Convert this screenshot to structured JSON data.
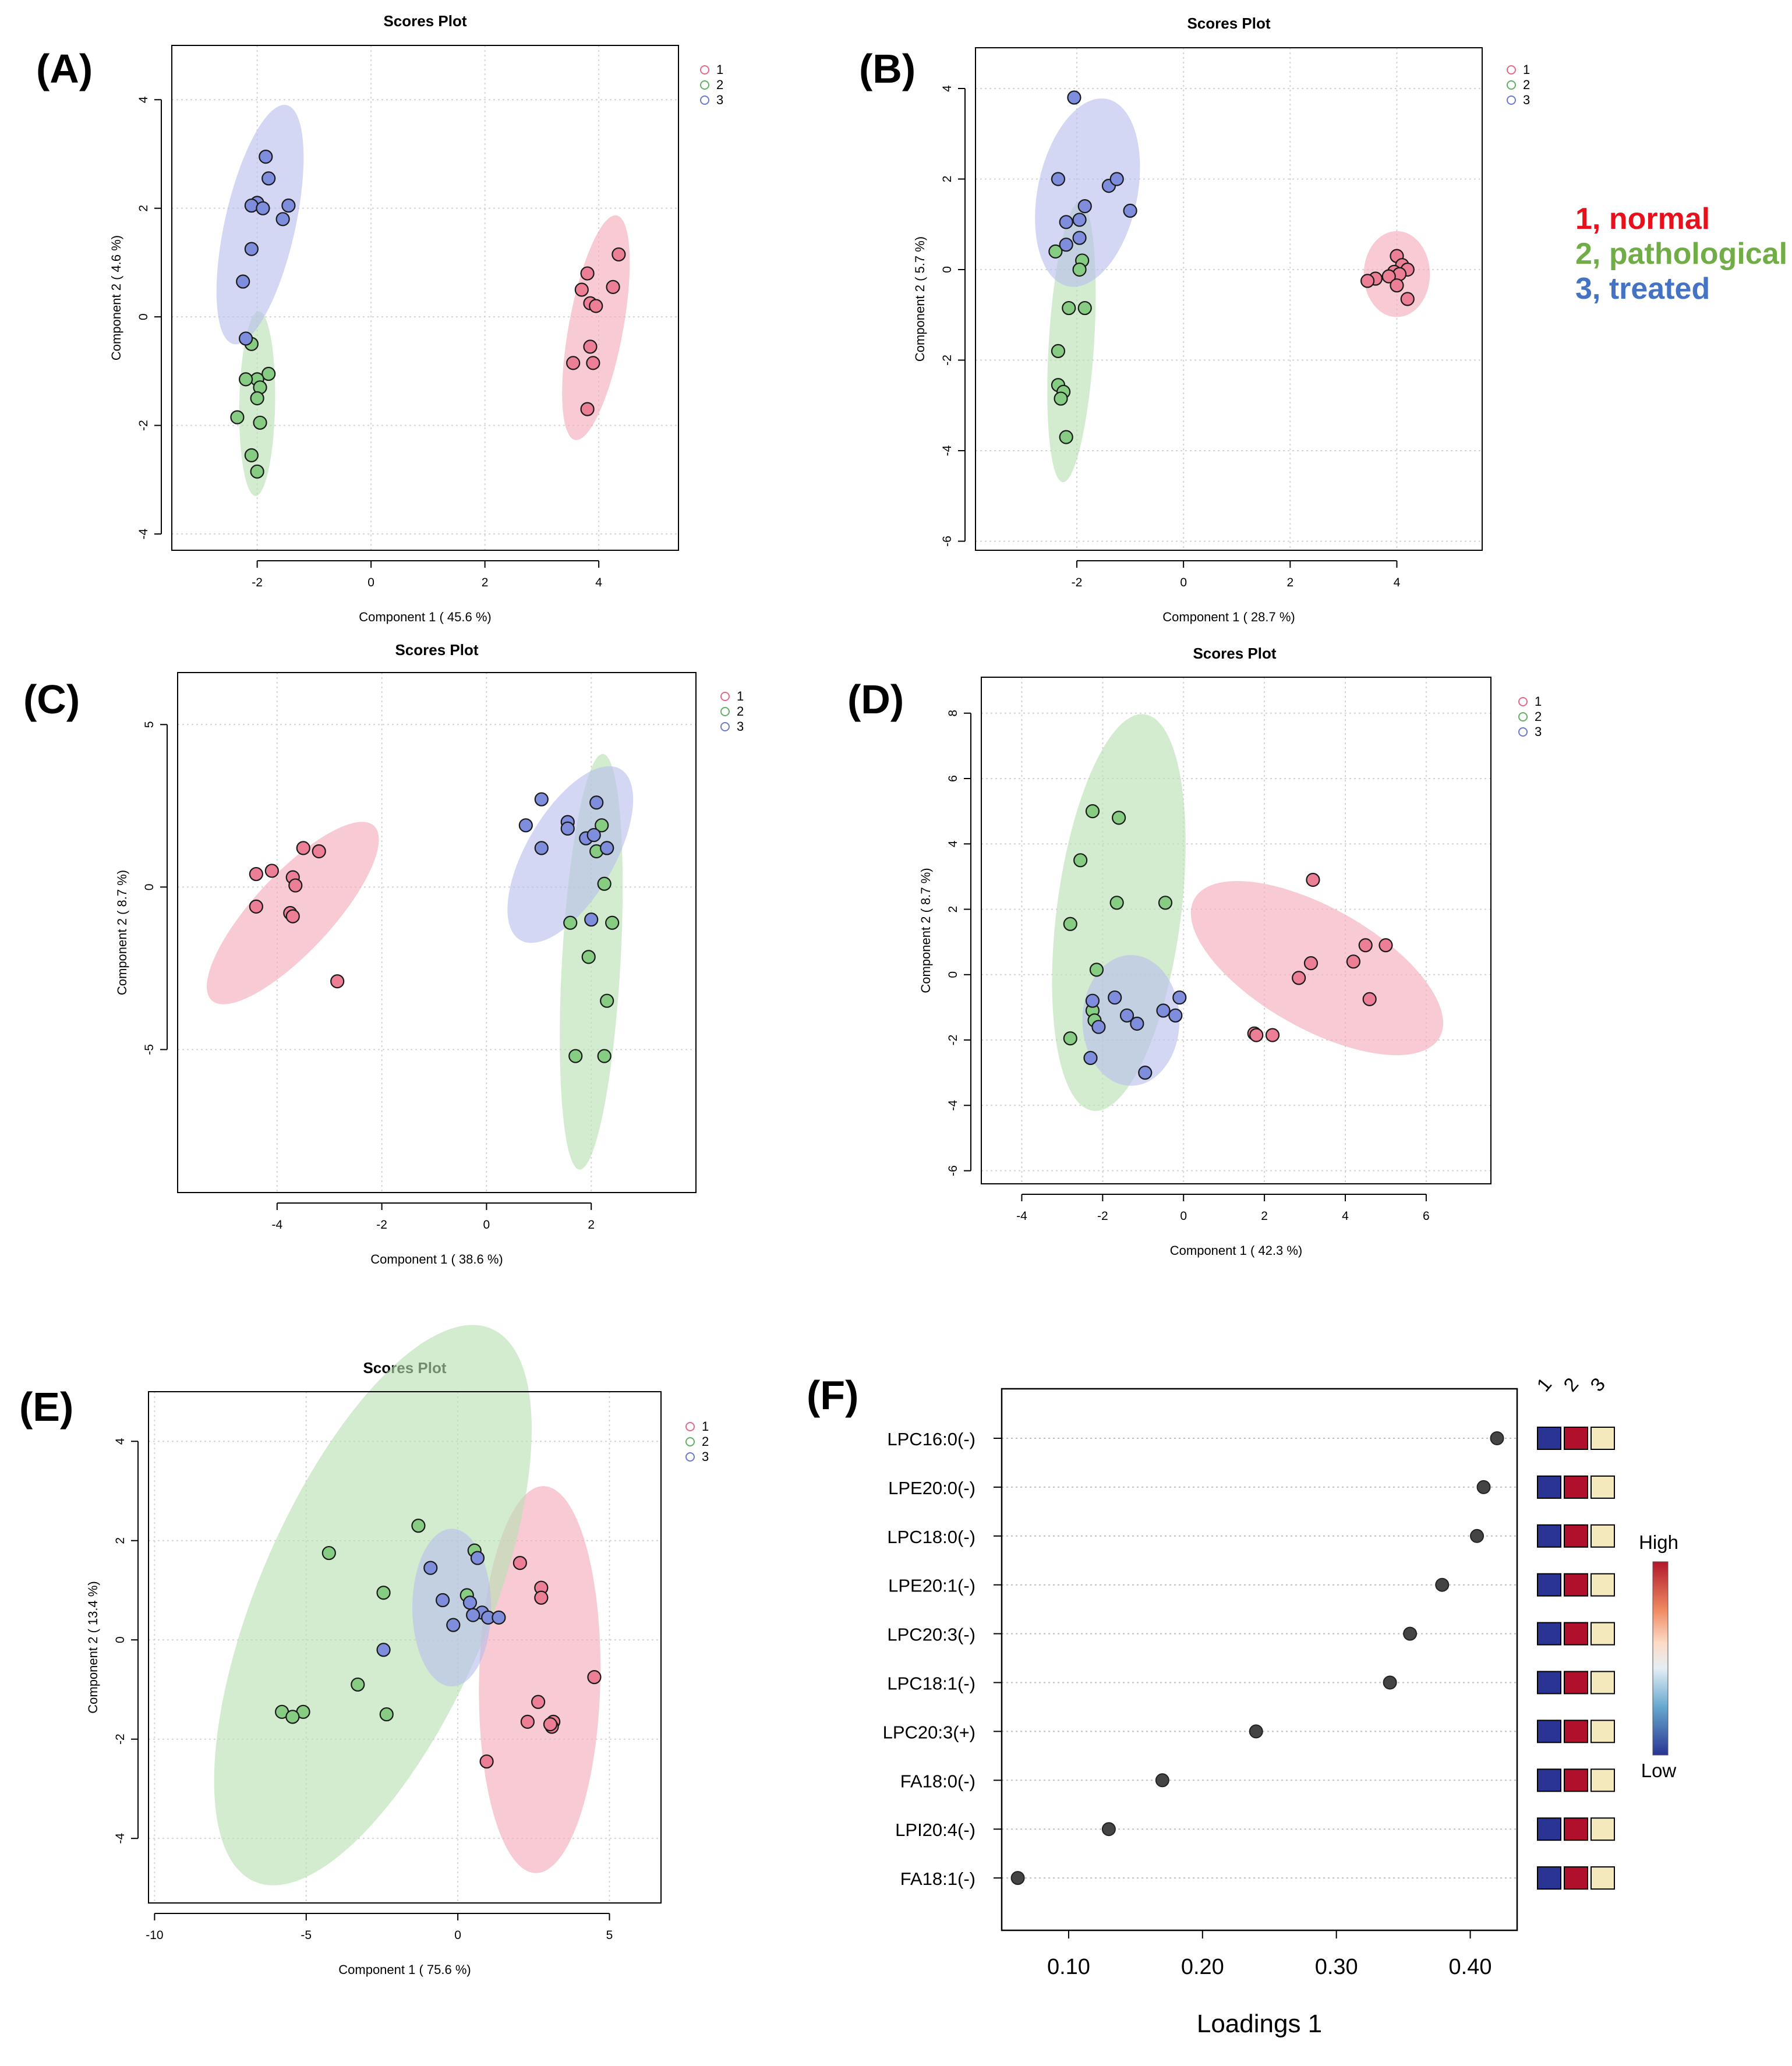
{
  "figure_key": [
    {
      "text": "1, normal",
      "color": "#e8101a"
    },
    {
      "text": "2, pathological",
      "color": "#71ad47"
    },
    {
      "text": "3, treated",
      "color": "#4472c4"
    }
  ],
  "group_colors": {
    "1": {
      "fill": "#ec7f95",
      "ellipse": "#f4a9b8",
      "legend": "#e26a86"
    },
    "2": {
      "fill": "#86cc82",
      "ellipse": "#b8e0b3",
      "legend": "#5fb05f"
    },
    "3": {
      "fill": "#7e8edc",
      "ellipse": "#b8bfeb",
      "legend": "#6a78d0"
    }
  },
  "chart_data": [
    {
      "panel": "(A)",
      "type": "scatter",
      "title": "Scores Plot",
      "xlabel": "Component 1 ( 45.6 %)",
      "ylabel": "Component 2 ( 4.6 %)",
      "xlim": [
        -3.5,
        5.4
      ],
      "ylim": [
        -4.3,
        5.0
      ],
      "xticks": [
        -2,
        0,
        2,
        4
      ],
      "yticks": [
        -4,
        -2,
        0,
        2,
        4
      ],
      "legend": [
        "1",
        "2",
        "3"
      ],
      "ellipses": [
        {
          "group": "1",
          "cx": 3.95,
          "cy": -0.2,
          "rx": 0.5,
          "ry": 2.1,
          "angle": 80
        },
        {
          "group": "2",
          "cx": -2.0,
          "cy": -1.6,
          "rx": 0.33,
          "ry": 1.7,
          "angle": 89
        },
        {
          "group": "3",
          "cx": -1.95,
          "cy": 1.7,
          "rx": 0.65,
          "ry": 2.25,
          "angle": 78
        }
      ],
      "series": [
        {
          "name": "1",
          "points": [
            [
              4.35,
              1.15
            ],
            [
              4.25,
              0.55
            ],
            [
              3.8,
              0.8
            ],
            [
              3.7,
              0.5
            ],
            [
              3.85,
              0.25
            ],
            [
              3.95,
              0.2
            ],
            [
              3.85,
              -0.55
            ],
            [
              3.55,
              -0.85
            ],
            [
              3.9,
              -0.85
            ],
            [
              3.8,
              -1.7
            ]
          ]
        },
        {
          "name": "2",
          "points": [
            [
              -2.1,
              -0.5
            ],
            [
              -1.8,
              -1.05
            ],
            [
              -2.0,
              -1.15
            ],
            [
              -2.2,
              -1.15
            ],
            [
              -1.95,
              -1.3
            ],
            [
              -2.0,
              -1.5
            ],
            [
              -2.35,
              -1.85
            ],
            [
              -1.95,
              -1.95
            ],
            [
              -2.1,
              -2.55
            ],
            [
              -2.0,
              -2.85
            ]
          ]
        },
        {
          "name": "3",
          "points": [
            [
              -1.85,
              2.95
            ],
            [
              -1.8,
              2.55
            ],
            [
              -2.0,
              2.1
            ],
            [
              -2.1,
              2.05
            ],
            [
              -1.9,
              2.0
            ],
            [
              -1.45,
              2.05
            ],
            [
              -1.55,
              1.8
            ],
            [
              -2.1,
              1.25
            ],
            [
              -2.25,
              0.65
            ],
            [
              -2.2,
              -0.4
            ]
          ]
        }
      ]
    },
    {
      "panel": "(B)",
      "type": "scatter",
      "title": "Scores Plot",
      "xlabel": "Component 1 ( 28.7 %)",
      "ylabel": "Component 2 ( 5.7 %)",
      "xlim": [
        -3.9,
        5.6
      ],
      "ylim": [
        -6.2,
        4.9
      ],
      "xticks": [
        -2,
        0,
        2,
        4
      ],
      "yticks": [
        -6,
        -4,
        -2,
        0,
        2,
        4
      ],
      "legend": [
        "1",
        "2",
        "3"
      ],
      "ellipses": [
        {
          "group": "1",
          "cx": 4.0,
          "cy": -0.1,
          "rx": 0.95,
          "ry": 0.62,
          "angle": 0
        },
        {
          "group": "2",
          "cx": -2.1,
          "cy": -1.6,
          "rx": 0.5,
          "ry": 3.1,
          "angle": 87
        },
        {
          "group": "3",
          "cx": -1.8,
          "cy": 1.7,
          "rx": 1.1,
          "ry": 2.1,
          "angle": 80
        }
      ],
      "series": [
        {
          "name": "1",
          "points": [
            [
              4.0,
              0.3
            ],
            [
              4.1,
              0.1
            ],
            [
              4.2,
              0.0
            ],
            [
              3.95,
              -0.05
            ],
            [
              4.05,
              -0.1
            ],
            [
              3.85,
              -0.15
            ],
            [
              3.6,
              -0.2
            ],
            [
              3.45,
              -0.25
            ],
            [
              4.0,
              -0.35
            ],
            [
              4.2,
              -0.65
            ]
          ]
        },
        {
          "name": "2",
          "points": [
            [
              -1.9,
              0.2
            ],
            [
              -1.95,
              0.0
            ],
            [
              -2.15,
              -0.85
            ],
            [
              -1.85,
              -0.85
            ],
            [
              -2.35,
              -1.8
            ],
            [
              -2.35,
              -2.55
            ],
            [
              -2.25,
              -2.7
            ],
            [
              -2.3,
              -2.85
            ],
            [
              -2.2,
              -3.7
            ],
            [
              -2.4,
              0.4
            ]
          ]
        },
        {
          "name": "3",
          "points": [
            [
              -2.05,
              3.8
            ],
            [
              -2.35,
              2.0
            ],
            [
              -1.4,
              1.85
            ],
            [
              -1.25,
              2.0
            ],
            [
              -1.0,
              1.3
            ],
            [
              -1.85,
              1.4
            ],
            [
              -1.95,
              1.1
            ],
            [
              -2.2,
              1.05
            ],
            [
              -1.95,
              0.7
            ],
            [
              -2.2,
              0.55
            ]
          ]
        }
      ]
    },
    {
      "panel": "(C)",
      "type": "scatter",
      "title": "Scores Plot",
      "xlabel": "Component 1 ( 38.6 %)",
      "ylabel": "Component 2 ( 8.7 %)",
      "xlim": [
        -5.9,
        4.0
      ],
      "ylim": [
        -9.4,
        6.6
      ],
      "xticks": [
        -4,
        -2,
        0,
        2
      ],
      "yticks": [
        -5,
        0,
        5
      ],
      "legend": [
        "1",
        "2",
        "3"
      ],
      "ellipses": [
        {
          "group": "1",
          "cx": -3.7,
          "cy": -0.8,
          "rx": 1.2,
          "ry": 3.1,
          "angle": 60
        },
        {
          "group": "2",
          "cx": 2.0,
          "cy": -2.3,
          "rx": 0.9,
          "ry": 6.4,
          "angle": 88
        },
        {
          "group": "3",
          "cx": 1.6,
          "cy": 1.0,
          "rx": 1.35,
          "ry": 2.8,
          "angle": 70
        }
      ],
      "series": [
        {
          "name": "1",
          "points": [
            [
              -3.5,
              1.2
            ],
            [
              -3.2,
              1.1
            ],
            [
              -4.1,
              0.5
            ],
            [
              -4.4,
              0.4
            ],
            [
              -3.7,
              0.3
            ],
            [
              -3.65,
              0.05
            ],
            [
              -4.4,
              -0.6
            ],
            [
              -3.75,
              -0.8
            ],
            [
              -3.7,
              -0.9
            ],
            [
              -2.85,
              -2.9
            ]
          ]
        },
        {
          "name": "2",
          "points": [
            [
              2.2,
              1.9
            ],
            [
              2.3,
              1.2
            ],
            [
              2.25,
              0.1
            ],
            [
              1.6,
              -1.1
            ],
            [
              2.4,
              -1.1
            ],
            [
              1.95,
              -2.15
            ],
            [
              2.3,
              -3.5
            ],
            [
              1.7,
              -5.2
            ],
            [
              2.25,
              -5.2
            ],
            [
              2.1,
              1.1
            ]
          ]
        },
        {
          "name": "3",
          "points": [
            [
              1.05,
              2.7
            ],
            [
              2.1,
              2.6
            ],
            [
              0.75,
              1.9
            ],
            [
              1.55,
              2.0
            ],
            [
              1.55,
              1.8
            ],
            [
              1.9,
              1.5
            ],
            [
              2.05,
              1.6
            ],
            [
              2.3,
              1.2
            ],
            [
              1.05,
              1.2
            ],
            [
              2.0,
              -1.0
            ]
          ]
        }
      ]
    },
    {
      "panel": "(D)",
      "type": "scatter",
      "title": "Scores Plot",
      "xlabel": "Component 1 ( 42.3 %)",
      "ylabel": "Component 2 ( 8.7 %)",
      "xlim": [
        -5.0,
        7.6
      ],
      "ylim": [
        -6.4,
        9.1
      ],
      "xticks": [
        -4,
        -2,
        0,
        2,
        4,
        6
      ],
      "yticks": [
        -6,
        -4,
        -2,
        0,
        2,
        4,
        6,
        8
      ],
      "legend": [
        "1",
        "2",
        "3"
      ],
      "ellipses": [
        {
          "group": "1",
          "cx": 3.3,
          "cy": 0.2,
          "rx": 1.85,
          "ry": 3.7,
          "angle": -35
        },
        {
          "group": "2",
          "cx": -1.6,
          "cy": 1.9,
          "rx": 1.9,
          "ry": 6.1,
          "angle": 84
        },
        {
          "group": "3",
          "cx": -1.3,
          "cy": -1.4,
          "rx": 2.0,
          "ry": 1.2,
          "angle": 0
        }
      ],
      "series": [
        {
          "name": "1",
          "points": [
            [
              3.2,
              2.9
            ],
            [
              4.5,
              0.9
            ],
            [
              5.0,
              0.9
            ],
            [
              4.2,
              0.4
            ],
            [
              3.15,
              0.35
            ],
            [
              2.85,
              -0.1
            ],
            [
              4.6,
              -0.75
            ],
            [
              1.75,
              -1.8
            ],
            [
              1.8,
              -1.85
            ],
            [
              2.2,
              -1.85
            ]
          ]
        },
        {
          "name": "2",
          "points": [
            [
              -2.25,
              5.0
            ],
            [
              -1.6,
              4.8
            ],
            [
              -2.55,
              3.5
            ],
            [
              -1.65,
              2.2
            ],
            [
              -0.45,
              2.2
            ],
            [
              -2.8,
              1.55
            ],
            [
              -2.15,
              0.15
            ],
            [
              -2.25,
              -1.1
            ],
            [
              -2.2,
              -1.4
            ],
            [
              -2.8,
              -1.95
            ]
          ]
        },
        {
          "name": "3",
          "points": [
            [
              -2.25,
              -0.8
            ],
            [
              -1.7,
              -0.7
            ],
            [
              -0.1,
              -0.7
            ],
            [
              -0.5,
              -1.1
            ],
            [
              -1.4,
              -1.25
            ],
            [
              -0.2,
              -1.25
            ],
            [
              -1.15,
              -1.5
            ],
            [
              -2.1,
              -1.6
            ],
            [
              -2.3,
              -2.55
            ],
            [
              -0.95,
              -3.0
            ]
          ]
        }
      ]
    },
    {
      "panel": "(E)",
      "type": "scatter",
      "title": "Scores Plot",
      "xlabel": "Component 1 ( 75.6 %)",
      "ylabel": "Component 2 ( 13.4 %)",
      "xlim": [
        -10.2,
        6.7
      ],
      "ylim": [
        -5.3,
        5.0
      ],
      "xticks": [
        -10,
        -5,
        0,
        5
      ],
      "yticks": [
        -4,
        -2,
        0,
        2,
        4
      ],
      "legend": [
        "1",
        "2",
        "3"
      ],
      "ellipses": [
        {
          "group": "1",
          "cx": 2.7,
          "cy": -0.8,
          "rx": 2.0,
          "ry": 3.9,
          "angle": 88
        },
        {
          "group": "2",
          "cx": -2.8,
          "cy": 0.7,
          "rx": 3.8,
          "ry": 6.8,
          "angle": 55
        },
        {
          "group": "3",
          "cx": -0.2,
          "cy": 0.65,
          "rx": 2.6,
          "ry": 1.3,
          "angle": 0
        }
      ],
      "series": [
        {
          "name": "1",
          "points": [
            [
              2.05,
              1.55
            ],
            [
              2.75,
              1.05
            ],
            [
              2.75,
              0.85
            ],
            [
              4.5,
              -0.75
            ],
            [
              2.65,
              -1.25
            ],
            [
              2.3,
              -1.65
            ],
            [
              3.15,
              -1.65
            ],
            [
              3.1,
              -1.75
            ],
            [
              0.95,
              -2.45
            ],
            [
              3.05,
              -1.7
            ]
          ]
        },
        {
          "name": "2",
          "points": [
            [
              -1.3,
              2.3
            ],
            [
              -4.25,
              1.75
            ],
            [
              0.55,
              1.8
            ],
            [
              -2.45,
              0.95
            ],
            [
              0.3,
              0.9
            ],
            [
              -3.3,
              -0.9
            ],
            [
              -5.8,
              -1.45
            ],
            [
              -5.1,
              -1.45
            ],
            [
              -5.45,
              -1.55
            ],
            [
              -2.35,
              -1.5
            ]
          ]
        },
        {
          "name": "3",
          "points": [
            [
              0.65,
              1.65
            ],
            [
              -0.9,
              1.45
            ],
            [
              -0.5,
              0.8
            ],
            [
              0.4,
              0.75
            ],
            [
              0.8,
              0.55
            ],
            [
              1.0,
              0.45
            ],
            [
              0.5,
              0.5
            ],
            [
              1.35,
              0.45
            ],
            [
              -0.15,
              0.3
            ],
            [
              -2.45,
              -0.2
            ]
          ]
        }
      ]
    },
    {
      "panel": "(F)",
      "type": "scatter",
      "xlabel": "Loadings 1",
      "xlim": [
        0.05,
        0.435
      ],
      "xticks": [
        "0.10",
        "0.20",
        "0.30",
        "0.40"
      ],
      "categories": [
        "LPC16:0(-)",
        "LPE20:0(-)",
        "LPC18:0(-)",
        "LPE20:1(-)",
        "LPC20:3(-)",
        "LPC18:1(-)",
        "LPC20:3(+)",
        "FA18:0(-)",
        "LPI20:4(-)",
        "FA18:1(-)"
      ],
      "values": [
        0.42,
        0.41,
        0.405,
        0.379,
        0.355,
        0.34,
        0.24,
        0.17,
        0.13,
        0.062
      ],
      "heatmap_columns": [
        "1",
        "2",
        "3"
      ],
      "heatmap_colors": [
        "#2a3593",
        "#b0102b",
        "#f4e9bd"
      ],
      "colorbar_high": "High",
      "colorbar_low": "Low"
    }
  ]
}
